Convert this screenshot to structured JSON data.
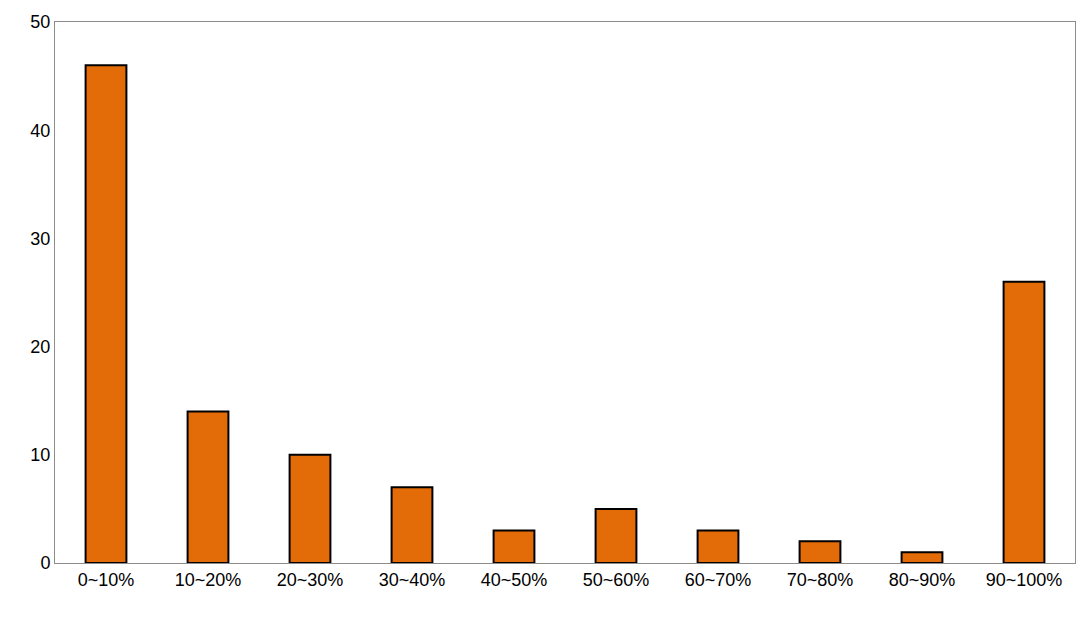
{
  "chart_data": {
    "type": "bar",
    "categories": [
      "0~10%",
      "10~20%",
      "20~30%",
      "30~40%",
      "40~50%",
      "50~60%",
      "60~70%",
      "70~80%",
      "80~90%",
      "90~100%"
    ],
    "values": [
      46,
      14,
      10,
      7,
      3,
      5,
      3,
      2,
      1,
      26
    ],
    "color": "#e36c09",
    "ylim": [
      0,
      50
    ],
    "yticks": [
      0,
      10,
      20,
      30,
      40,
      50
    ],
    "grid": false
  }
}
